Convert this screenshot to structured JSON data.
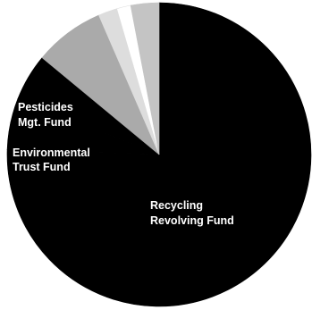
{
  "chart_data": {
    "type": "pie",
    "title": "",
    "slices": [
      {
        "label": "Recycling Revolving Fund",
        "value": 75.5,
        "color": "#000000"
      },
      {
        "label": "Environmental Trust Fund",
        "value": 5.5,
        "color": "#000000"
      },
      {
        "label": "Pesticides Mgt. Fund",
        "value": 5.0,
        "color": "#000000"
      },
      {
        "label": "",
        "value": 7.5,
        "color": "#aaaaaa"
      },
      {
        "label": "",
        "value": 2.0,
        "color": "#dddddd"
      },
      {
        "label": "",
        "value": 1.5,
        "color": "#ffffff"
      },
      {
        "label": "",
        "value": 3.0,
        "color": "#c4c4c4"
      }
    ],
    "start": "12 o'clock",
    "direction": "clockwise"
  }
}
